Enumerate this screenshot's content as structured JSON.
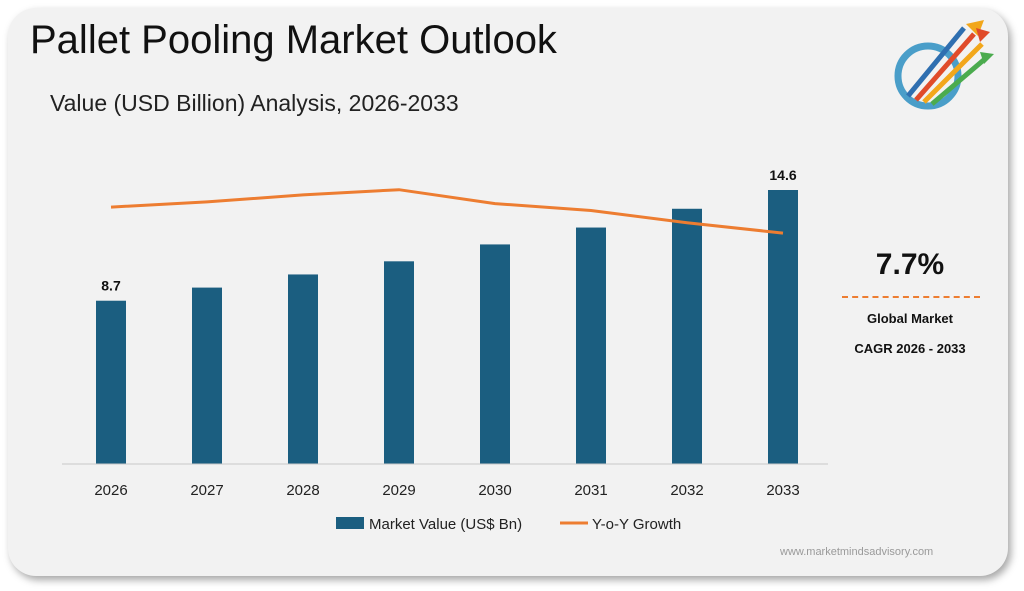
{
  "header": {
    "title": "Pallet Pooling Market Outlook",
    "subtitle": "Value (USD Billion) Analysis, 2026-2033"
  },
  "chart_data": {
    "type": "bar",
    "categories": [
      "2026",
      "2027",
      "2028",
      "2029",
      "2030",
      "2031",
      "2032",
      "2033"
    ],
    "series": [
      {
        "name": "Market Value (US$ Bn)",
        "kind": "bar",
        "color": "#1B5E80",
        "values": [
          8.7,
          9.4,
          10.1,
          10.8,
          11.7,
          12.6,
          13.6,
          14.6
        ]
      },
      {
        "name": "Y-o-Y Growth",
        "kind": "line",
        "color": "#ED7D31",
        "values": [
          7.9,
          8.2,
          8.6,
          8.9,
          8.1,
          7.7,
          7.0,
          6.4
        ]
      }
    ],
    "data_labels": [
      {
        "category": "2026",
        "text": "8.7"
      },
      {
        "category": "2033",
        "text": "14.6"
      }
    ],
    "ylim": [
      0,
      15.5
    ],
    "grid": false,
    "legend_position": "bottom"
  },
  "cagr": {
    "value": "7.7%",
    "label_line1": "Global Market",
    "label_line2": "CAGR 2026 - 2033",
    "accent_color": "#ED7D31"
  },
  "logo": {
    "icon": "arrows-globe-logo-icon"
  },
  "footer": {
    "website": "www.marketmindsadvisory.com"
  }
}
